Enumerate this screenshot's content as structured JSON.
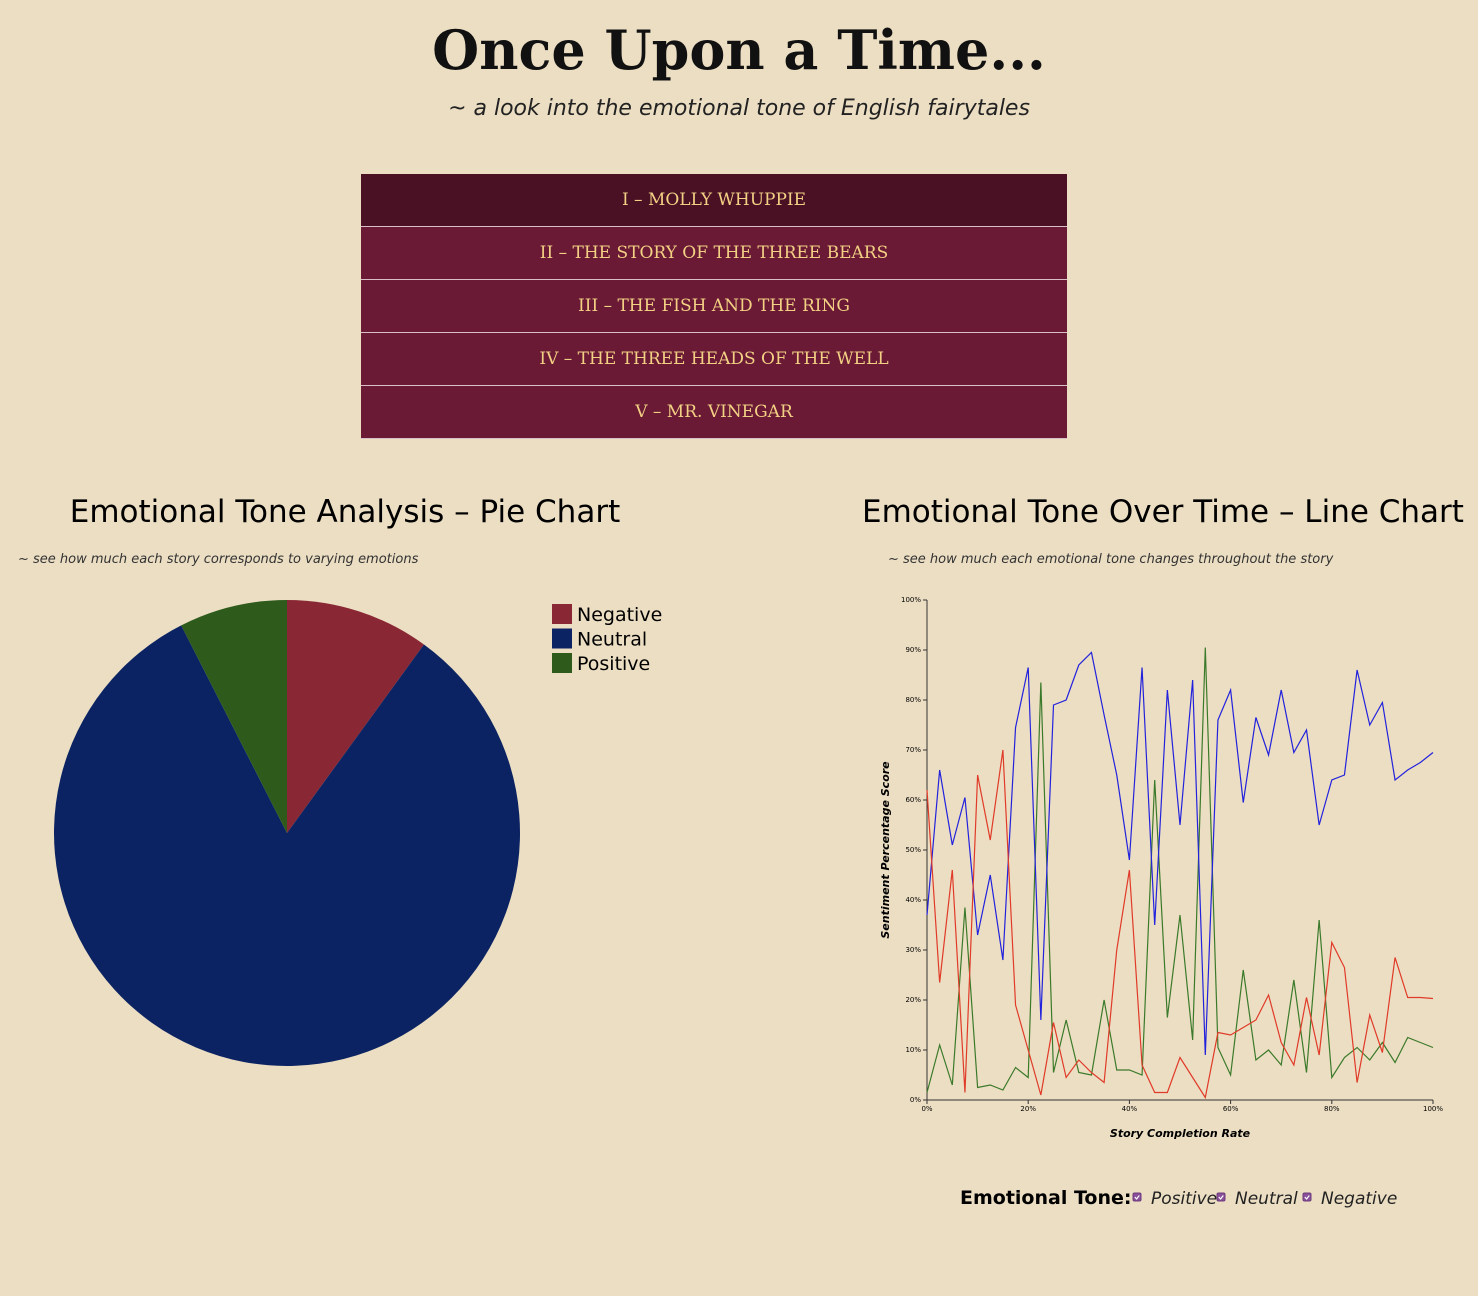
{
  "header": {
    "title": "Once Upon a Time...",
    "subtitle": "~ a look into the emotional tone of English fairytales"
  },
  "stories": [
    "I – MOLLY WHUPPIE",
    "II – THE STORY OF THE THREE BEARS",
    "III – THE FISH AND THE RING",
    "IV – THE THREE HEADS OF THE WELL",
    "V – MR. VINEGAR"
  ],
  "chart_data": [
    {
      "type": "pie",
      "title": "Emotional Tone Analysis – Pie Chart",
      "subtitle": "~ see how much each story corresponds to varying emotions",
      "categories": [
        "Negative",
        "Neutral",
        "Positive"
      ],
      "values": [
        10,
        82.5,
        7.5
      ],
      "colors": [
        "#8a2734",
        "#0b2362",
        "#2e5b1c"
      ],
      "legend": "top-right"
    },
    {
      "type": "line",
      "title": "Emotional Tone Over Time – Line Chart",
      "subtitle": "~ see how much each emotional tone changes throughout the story",
      "x_label": "Story Completion Rate",
      "y_label": "Sentiment Percentage Score",
      "x": [
        0,
        2.5,
        5,
        7.5,
        10,
        12.5,
        15,
        17.5,
        20,
        22.5,
        25,
        27.5,
        30,
        32.5,
        35,
        37.5,
        40,
        42.5,
        45,
        47.5,
        50,
        52.5,
        55,
        57.5,
        60,
        62.5,
        65,
        67.5,
        70,
        72.5,
        75,
        77.5,
        80,
        82.5,
        85,
        87.5,
        90,
        92.5,
        95,
        97.5,
        100
      ],
      "xlim": [
        0,
        100
      ],
      "ylim": [
        0,
        100
      ],
      "xticks": [
        {
          "value": 0,
          "label": "0%"
        },
        {
          "value": 20,
          "label": "20%"
        },
        {
          "value": 40,
          "label": "40%"
        },
        {
          "value": 60,
          "label": "60%"
        },
        {
          "value": 80,
          "label": "80%"
        },
        {
          "value": 100,
          "label": "100%"
        }
      ],
      "yticks": [
        {
          "value": 0,
          "label": "0%"
        },
        {
          "value": 10,
          "label": "10%"
        },
        {
          "value": 20,
          "label": "20%"
        },
        {
          "value": 30,
          "label": "30%"
        },
        {
          "value": 40,
          "label": "40%"
        },
        {
          "value": 50,
          "label": "50%"
        },
        {
          "value": 60,
          "label": "60%"
        },
        {
          "value": 70,
          "label": "70%"
        },
        {
          "value": 80,
          "label": "80%"
        },
        {
          "value": 90,
          "label": "90%"
        },
        {
          "value": 100,
          "label": "100%"
        }
      ],
      "legend_title": "Emotional Tone:",
      "series": [
        {
          "name": "Positive",
          "color": "#3b7a2a",
          "values": [
            1.5,
            11,
            3,
            38.5,
            2.5,
            3,
            2,
            6.5,
            4.5,
            83.5,
            5.5,
            16,
            5.5,
            5,
            20,
            6,
            6,
            5,
            64,
            16.5,
            37,
            12,
            90.5,
            10.5,
            5,
            26,
            8,
            10,
            7,
            24,
            5.5,
            36,
            4.5,
            8.5,
            10.5,
            8,
            11.5,
            7.5,
            12.5,
            11.5,
            10.5
          ]
        },
        {
          "name": "Neutral",
          "color": "#2222dd",
          "values": [
            37,
            66,
            51,
            60.5,
            33,
            45,
            28,
            74.5,
            86.5,
            16,
            79,
            80,
            87,
            89.5,
            77,
            65,
            48,
            86.5,
            35,
            82,
            55,
            84,
            9,
            76,
            82,
            59.5,
            76.5,
            69,
            82,
            69.5,
            74,
            55,
            64,
            65,
            86,
            75,
            79.5,
            64,
            66,
            67.5,
            69.5
          ]
        },
        {
          "name": "Negative",
          "color": "#e03a28",
          "values": [
            62,
            23.5,
            46,
            1.5,
            65,
            52,
            70,
            19,
            10,
            1,
            15.5,
            4.5,
            8,
            5.5,
            3.5,
            30,
            46,
            7,
            1.5,
            1.5,
            8.5,
            4.5,
            0.5,
            13.5,
            13,
            14.5,
            16,
            21,
            11.5,
            7,
            20.5,
            9,
            31.5,
            26.5,
            3.5,
            17,
            9.5,
            28.5,
            20.5,
            20.5,
            20.3
          ]
        }
      ]
    }
  ]
}
